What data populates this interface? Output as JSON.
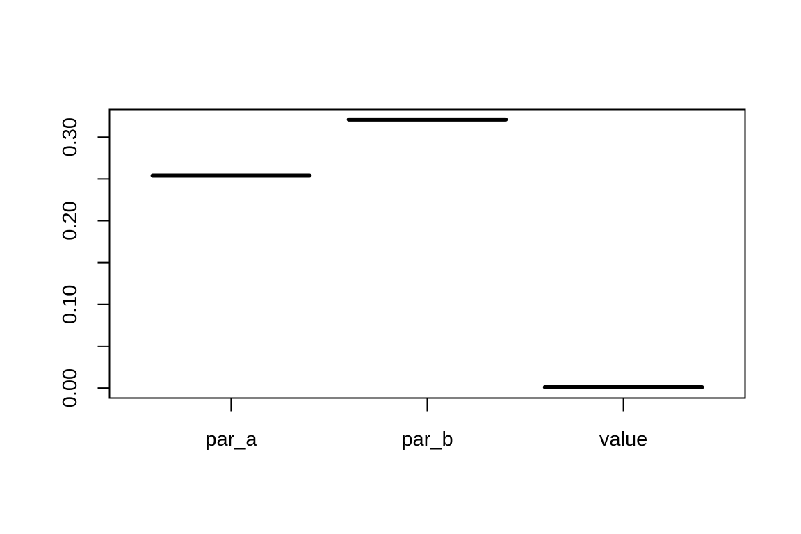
{
  "chart_data": {
    "type": "boxplot",
    "categories": [
      "par_a",
      "par_b",
      "value"
    ],
    "values": [
      0.254,
      0.321,
      0.001
    ],
    "title": "",
    "xlabel": "",
    "ylabel": "",
    "ylim": [
      -0.012,
      0.333
    ],
    "y_ticks": [
      0.0,
      0.05,
      0.1,
      0.15,
      0.2,
      0.25,
      0.3
    ],
    "y_tick_labels": [
      "0.00",
      "0.10",
      "0.20",
      "0.30"
    ],
    "y_tick_label_values": [
      0.0,
      0.1,
      0.2,
      0.3
    ],
    "grid": false,
    "legend": "none",
    "line_color": "#000000"
  }
}
